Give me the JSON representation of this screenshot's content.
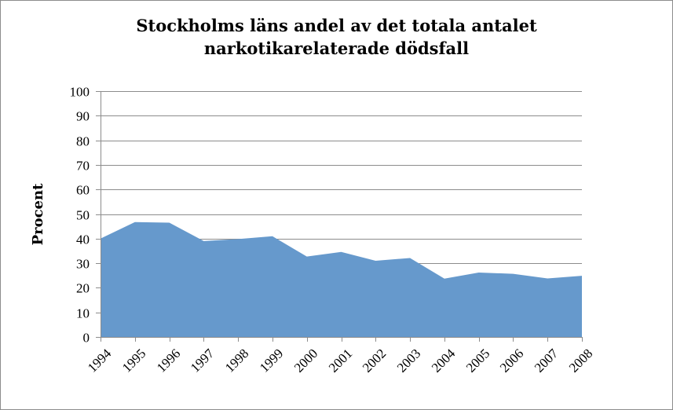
{
  "chart_data": {
    "type": "area",
    "title_lines": [
      "Stockholms läns andel av det totala antalet",
      "narkotikarelaterade dödsfall"
    ],
    "title": "Stockholms läns andel av det totala antalet narkotikarelaterade dödsfall",
    "xlabel": "",
    "ylabel": "Procent",
    "categories": [
      "1994",
      "1995",
      "1996",
      "1997",
      "1998",
      "1999",
      "2000",
      "2001",
      "2002",
      "2003",
      "2004",
      "2005",
      "2006",
      "2007",
      "2008"
    ],
    "series": [
      {
        "values": [
          40,
          46.7,
          46.5,
          39,
          39.8,
          41,
          32.7,
          34.6,
          31,
          32.1,
          23.7,
          26.2,
          25.7,
          23.8,
          24.9
        ]
      }
    ],
    "ylim": [
      0,
      100
    ],
    "yticks": [
      0,
      10,
      20,
      30,
      40,
      50,
      60,
      70,
      80,
      90,
      100
    ],
    "grid": true,
    "colors": {
      "fill": "#6699cc",
      "grid": "#8c8c8c",
      "axis": "#8c8c8c"
    }
  }
}
